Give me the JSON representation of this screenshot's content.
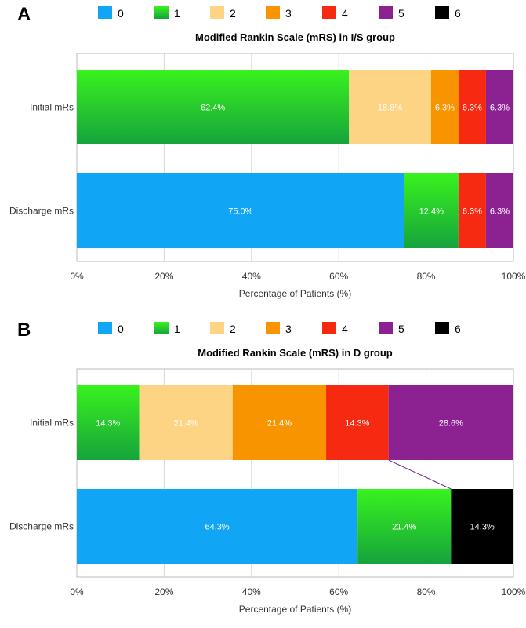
{
  "legend": [
    {
      "label": "0",
      "color": "#10A5F5"
    },
    {
      "label": "1",
      "color": "#2BD52B"
    },
    {
      "label": "2",
      "color": "#FDD384"
    },
    {
      "label": "3",
      "color": "#F79400"
    },
    {
      "label": "4",
      "color": "#F52A10"
    },
    {
      "label": "5",
      "color": "#8C2291"
    },
    {
      "label": "6",
      "color": "#000000"
    }
  ],
  "chart_data": [
    {
      "type": "bar",
      "orientation": "horizontal",
      "stacked": true,
      "panel_label": "A",
      "title": "Modified Rankin Scale (mRS) in I/S group",
      "xlabel": "Percentage of Patients (%)",
      "xlim": [
        0,
        100
      ],
      "xticks": [
        "0%",
        "20%",
        "40%",
        "60%",
        "80%",
        "100%"
      ],
      "grid": true,
      "legend_position": "top",
      "categories": [
        "Initial mRs",
        "Discharge mRs"
      ],
      "series": [
        {
          "name": "0",
          "values": [
            0,
            75.0
          ],
          "labels": [
            "",
            "75.0%"
          ]
        },
        {
          "name": "1",
          "values": [
            62.4,
            12.4
          ],
          "labels": [
            "62.4%",
            "12.4%"
          ]
        },
        {
          "name": "2",
          "values": [
            18.8,
            0
          ],
          "labels": [
            "18.8%",
            ""
          ]
        },
        {
          "name": "3",
          "values": [
            6.3,
            0
          ],
          "labels": [
            "6.3%",
            ""
          ]
        },
        {
          "name": "4",
          "values": [
            6.3,
            6.3
          ],
          "labels": [
            "6.3%",
            "6.3%"
          ]
        },
        {
          "name": "5",
          "values": [
            6.3,
            6.3
          ],
          "labels": [
            "6.3%",
            "6.3%"
          ]
        },
        {
          "name": "6",
          "values": [
            0,
            0
          ],
          "labels": [
            "",
            ""
          ]
        }
      ]
    },
    {
      "type": "bar",
      "orientation": "horizontal",
      "stacked": true,
      "panel_label": "B",
      "title": "Modified Rankin Scale (mRS) in D group",
      "xlabel": "Percentage of Patients (%)",
      "xlim": [
        0,
        100
      ],
      "xticks": [
        "0%",
        "20%",
        "40%",
        "60%",
        "80%",
        "100%"
      ],
      "grid": true,
      "legend_position": "top",
      "categories": [
        "Initial mRs",
        "Discharge mRs"
      ],
      "series": [
        {
          "name": "0",
          "values": [
            0,
            64.3
          ],
          "labels": [
            "",
            "64.3%"
          ]
        },
        {
          "name": "1",
          "values": [
            14.3,
            21.4
          ],
          "labels": [
            "14.3%",
            "21.4%"
          ]
        },
        {
          "name": "2",
          "values": [
            21.4,
            0
          ],
          "labels": [
            "21.4%",
            ""
          ]
        },
        {
          "name": "3",
          "values": [
            21.4,
            0
          ],
          "labels": [
            "21.4%",
            ""
          ]
        },
        {
          "name": "4",
          "values": [
            14.3,
            0
          ],
          "labels": [
            "14.3%",
            ""
          ]
        },
        {
          "name": "5",
          "values": [
            28.6,
            0
          ],
          "labels": [
            "28.6%",
            ""
          ]
        },
        {
          "name": "6",
          "values": [
            0,
            14.3
          ],
          "labels": [
            "",
            "14.3%"
          ]
        }
      ]
    }
  ]
}
